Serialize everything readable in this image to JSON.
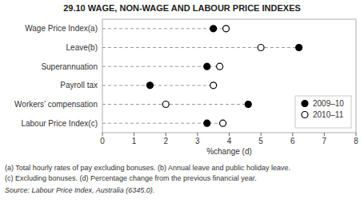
{
  "chart_data": {
    "type": "dot",
    "title": "29.10   WAGE, NON-WAGE AND LABOUR PRICE INDEXES",
    "orientation": "horizontal",
    "categories": [
      "Wage Price Index(a)",
      "Leave(b)",
      "Superannuation",
      "Payroll tax",
      "Workers’ compensation",
      "Labour Price Index(c)"
    ],
    "series": [
      {
        "name": "2009–10",
        "color": "#000000",
        "marker": "circle",
        "values": [
          3.5,
          6.2,
          3.3,
          1.5,
          4.6,
          3.3
        ]
      },
      {
        "name": "2010–11",
        "color": "#000000",
        "marker": "circle-open",
        "values": [
          3.9,
          5.0,
          3.7,
          3.5,
          2.0,
          3.8
        ]
      }
    ],
    "xlabel": "%change (d)",
    "xlim": [
      0,
      8
    ],
    "xticks": [
      0,
      1,
      2,
      3,
      4,
      5,
      6,
      7,
      8
    ],
    "grid": false,
    "legend": "lower right",
    "annotations": [
      "(a) Total hourly rates of pay excluding bonuses.  (b) Annual leave and public holiday leave.",
      "(c) Excluding bonuses.  (d) Percentage change from the previous financial year.",
      "Source:  Labour Price Index, Australia (6345.0)."
    ]
  }
}
